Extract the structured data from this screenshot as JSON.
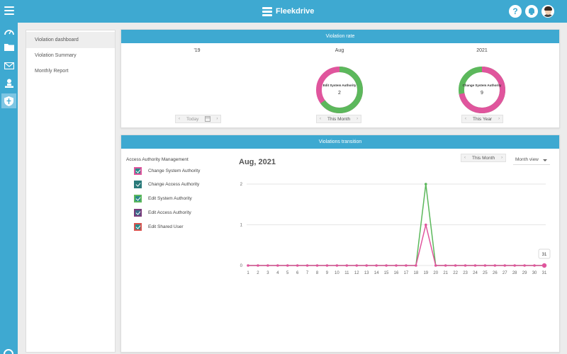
{
  "header": {
    "brand": "Fleekdrive",
    "help_glyph": "?"
  },
  "sidebar": {
    "items": [
      {
        "icon": "dashboard-gauge-icon"
      },
      {
        "icon": "folder-icon"
      },
      {
        "icon": "mail-icon"
      },
      {
        "icon": "user-icon"
      },
      {
        "icon": "shield-icon",
        "active": true
      }
    ]
  },
  "menu": {
    "items": [
      {
        "label": "Violation dashboard",
        "active": true
      },
      {
        "label": "Violation Summary"
      },
      {
        "label": "Monthly Report"
      }
    ]
  },
  "violation_rate": {
    "header": "Violation rate",
    "columns": [
      {
        "period": "'19",
        "pager_label": "Today",
        "donut": null
      },
      {
        "period": "Aug",
        "pager_label": "This Month",
        "donut": {
          "label": "Edit System Authority",
          "count": "2",
          "main_share": 0.65,
          "main_color": "#5cb85c",
          "rest_color": "#e0559d"
        }
      },
      {
        "period": "2021",
        "pager_label": "This Year",
        "donut": {
          "label": "Change System Authority",
          "count": "9",
          "main_share": 0.72,
          "main_color": "#e0559d",
          "rest_color": "#5cb85c"
        }
      }
    ]
  },
  "transition": {
    "header": "Violations transition",
    "legend_title": "Access Authority Management",
    "legend": [
      {
        "label": "Change System Authority",
        "color": "#e0559d",
        "border": "#e0559d",
        "fill": "#2a8a8a"
      },
      {
        "label": "Change Access Authority",
        "color": "#2a7a7a",
        "border": "#2a7a7a",
        "fill": "#2a7a7a"
      },
      {
        "label": "Edit System Authority",
        "color": "#5cb85c",
        "border": "#5cb85c",
        "fill": "#2a8a8a"
      },
      {
        "label": "Edit Access Authority",
        "color": "#7a3a7a",
        "border": "#7a3a7a",
        "fill": "#3a6a8a"
      },
      {
        "label": "Edit Shared User",
        "color": "#d9534f",
        "border": "#d9534f",
        "fill": "#2a8a8a"
      }
    ],
    "chart_title": "Aug, 2021",
    "pager_label": "This Month",
    "view_select": "Month view",
    "tooltip": "31"
  },
  "chart_data": {
    "type": "line",
    "title": "Aug, 2021",
    "xlabel": "",
    "ylabel": "",
    "x": [
      1,
      2,
      3,
      4,
      5,
      6,
      7,
      8,
      9,
      10,
      11,
      12,
      13,
      14,
      15,
      16,
      17,
      18,
      19,
      20,
      21,
      22,
      23,
      24,
      25,
      26,
      27,
      28,
      29,
      30,
      31
    ],
    "y_ticks": [
      0,
      1,
      2
    ],
    "ylim": [
      0,
      2
    ],
    "grid": true,
    "series": [
      {
        "color": "#5cb85c",
        "values": [
          0,
          0,
          0,
          0,
          0,
          0,
          0,
          0,
          0,
          0,
          0,
          0,
          0,
          0,
          0,
          0,
          0,
          0,
          2,
          0,
          0,
          0,
          0,
          0,
          0,
          0,
          0,
          0,
          0,
          0,
          0
        ]
      },
      {
        "color": "#e0559d",
        "values": [
          0,
          0,
          0,
          0,
          0,
          0,
          0,
          0,
          0,
          0,
          0,
          0,
          0,
          0,
          0,
          0,
          0,
          0,
          1,
          0,
          0,
          0,
          0,
          0,
          0,
          0,
          0,
          0,
          0,
          0,
          0
        ]
      }
    ]
  }
}
